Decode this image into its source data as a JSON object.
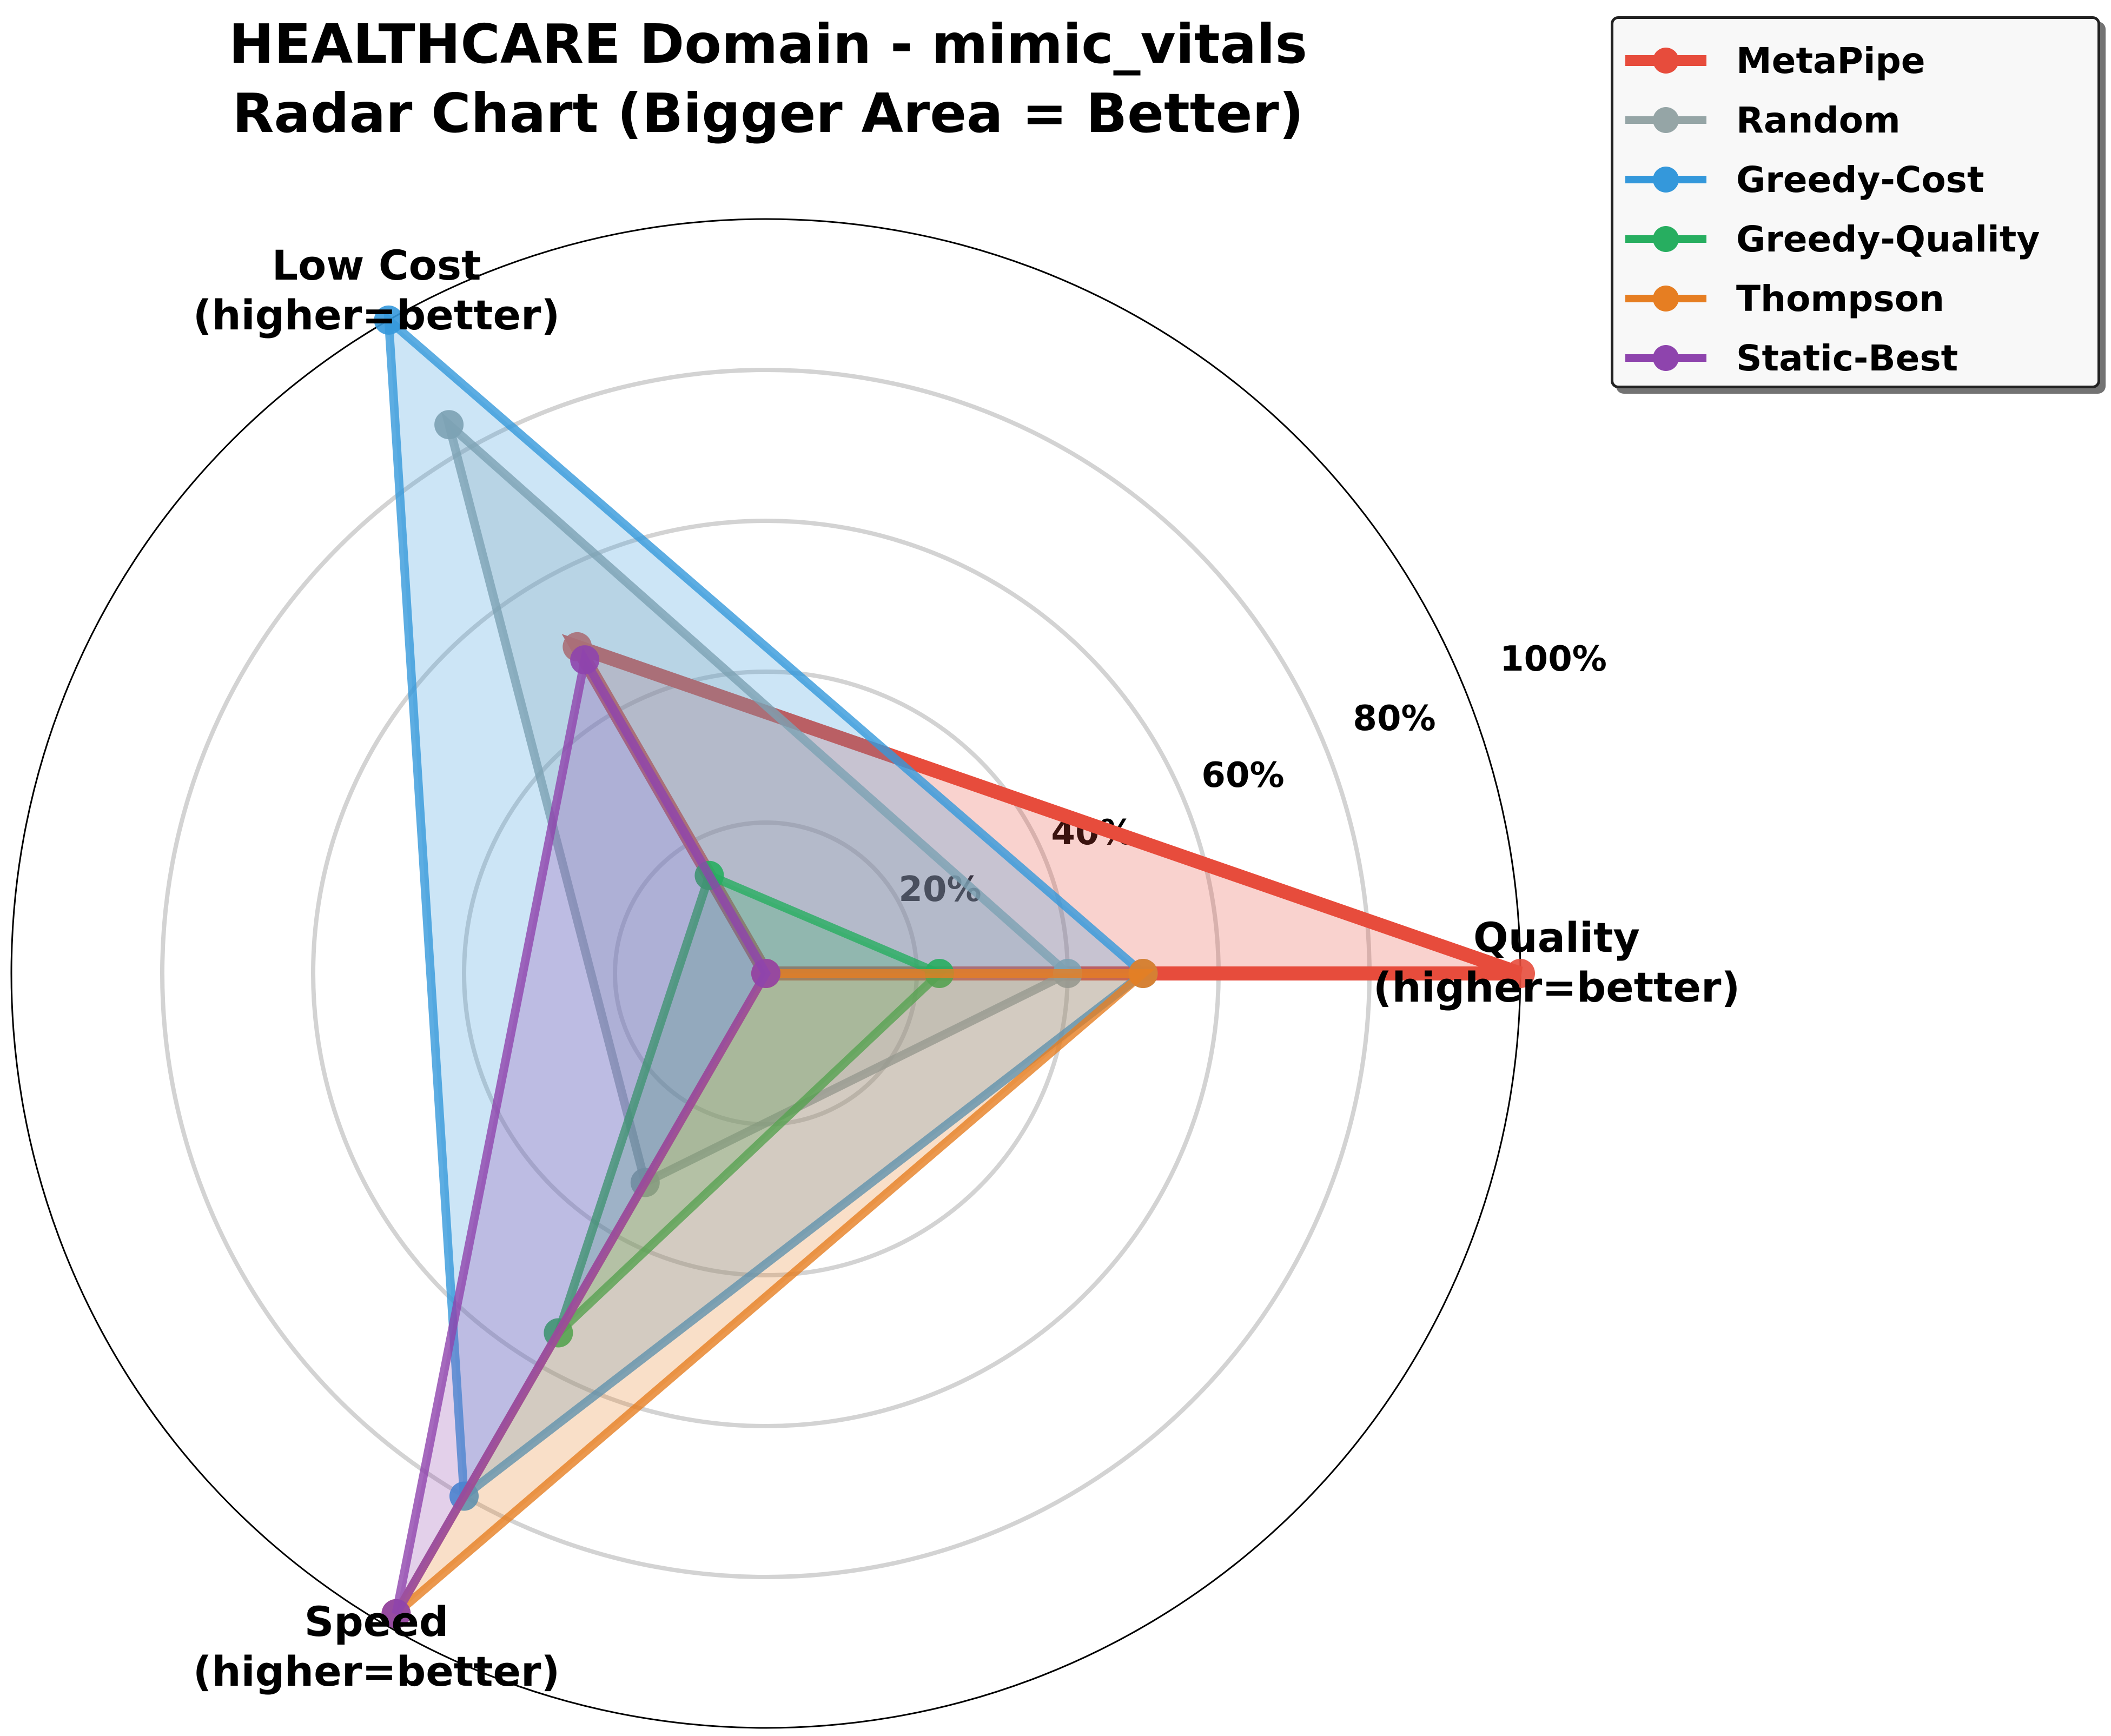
{
  "title": {
    "line1": "HEALTHCARE Domain - mimic_vitals",
    "line2": "Radar Chart (Bigger Area = Better)"
  },
  "chart_data": {
    "type": "radar",
    "title": "HEALTHCARE Domain - mimic_vitals\nRadar Chart (Bigger Area = Better)",
    "axes": [
      {
        "label_line1": "Quality",
        "label_line2": "(higher=better)"
      },
      {
        "label_line1": "Low Cost",
        "label_line2": "(higher=better)"
      },
      {
        "label_line1": "Speed",
        "label_line2": "(higher=better)"
      }
    ],
    "r_ticks": [
      {
        "value": 20,
        "label": "20%"
      },
      {
        "value": 40,
        "label": "40%"
      },
      {
        "value": 60,
        "label": "60%"
      },
      {
        "value": 80,
        "label": "80%"
      },
      {
        "value": 100,
        "label": "100%"
      }
    ],
    "rlim": [
      0,
      100
    ],
    "grid": true,
    "legend_position": "upper right, outside plot",
    "series": [
      {
        "name": "MetaPipe",
        "color": "#e74c3c",
        "values": [
          100,
          50,
          0
        ]
      },
      {
        "name": "Random",
        "color": "#95a5a6",
        "values": [
          40,
          84,
          32
        ]
      },
      {
        "name": "Greedy-Cost",
        "color": "#3498db",
        "values": [
          50,
          100,
          80
        ]
      },
      {
        "name": "Greedy-Quality",
        "color": "#27ae60",
        "values": [
          23,
          15,
          55
        ]
      },
      {
        "name": "Thompson",
        "color": "#e67e22",
        "values": [
          50,
          0,
          98
        ]
      },
      {
        "name": "Static-Best",
        "color": "#8e44ad",
        "values": [
          0,
          48,
          98
        ]
      }
    ]
  }
}
